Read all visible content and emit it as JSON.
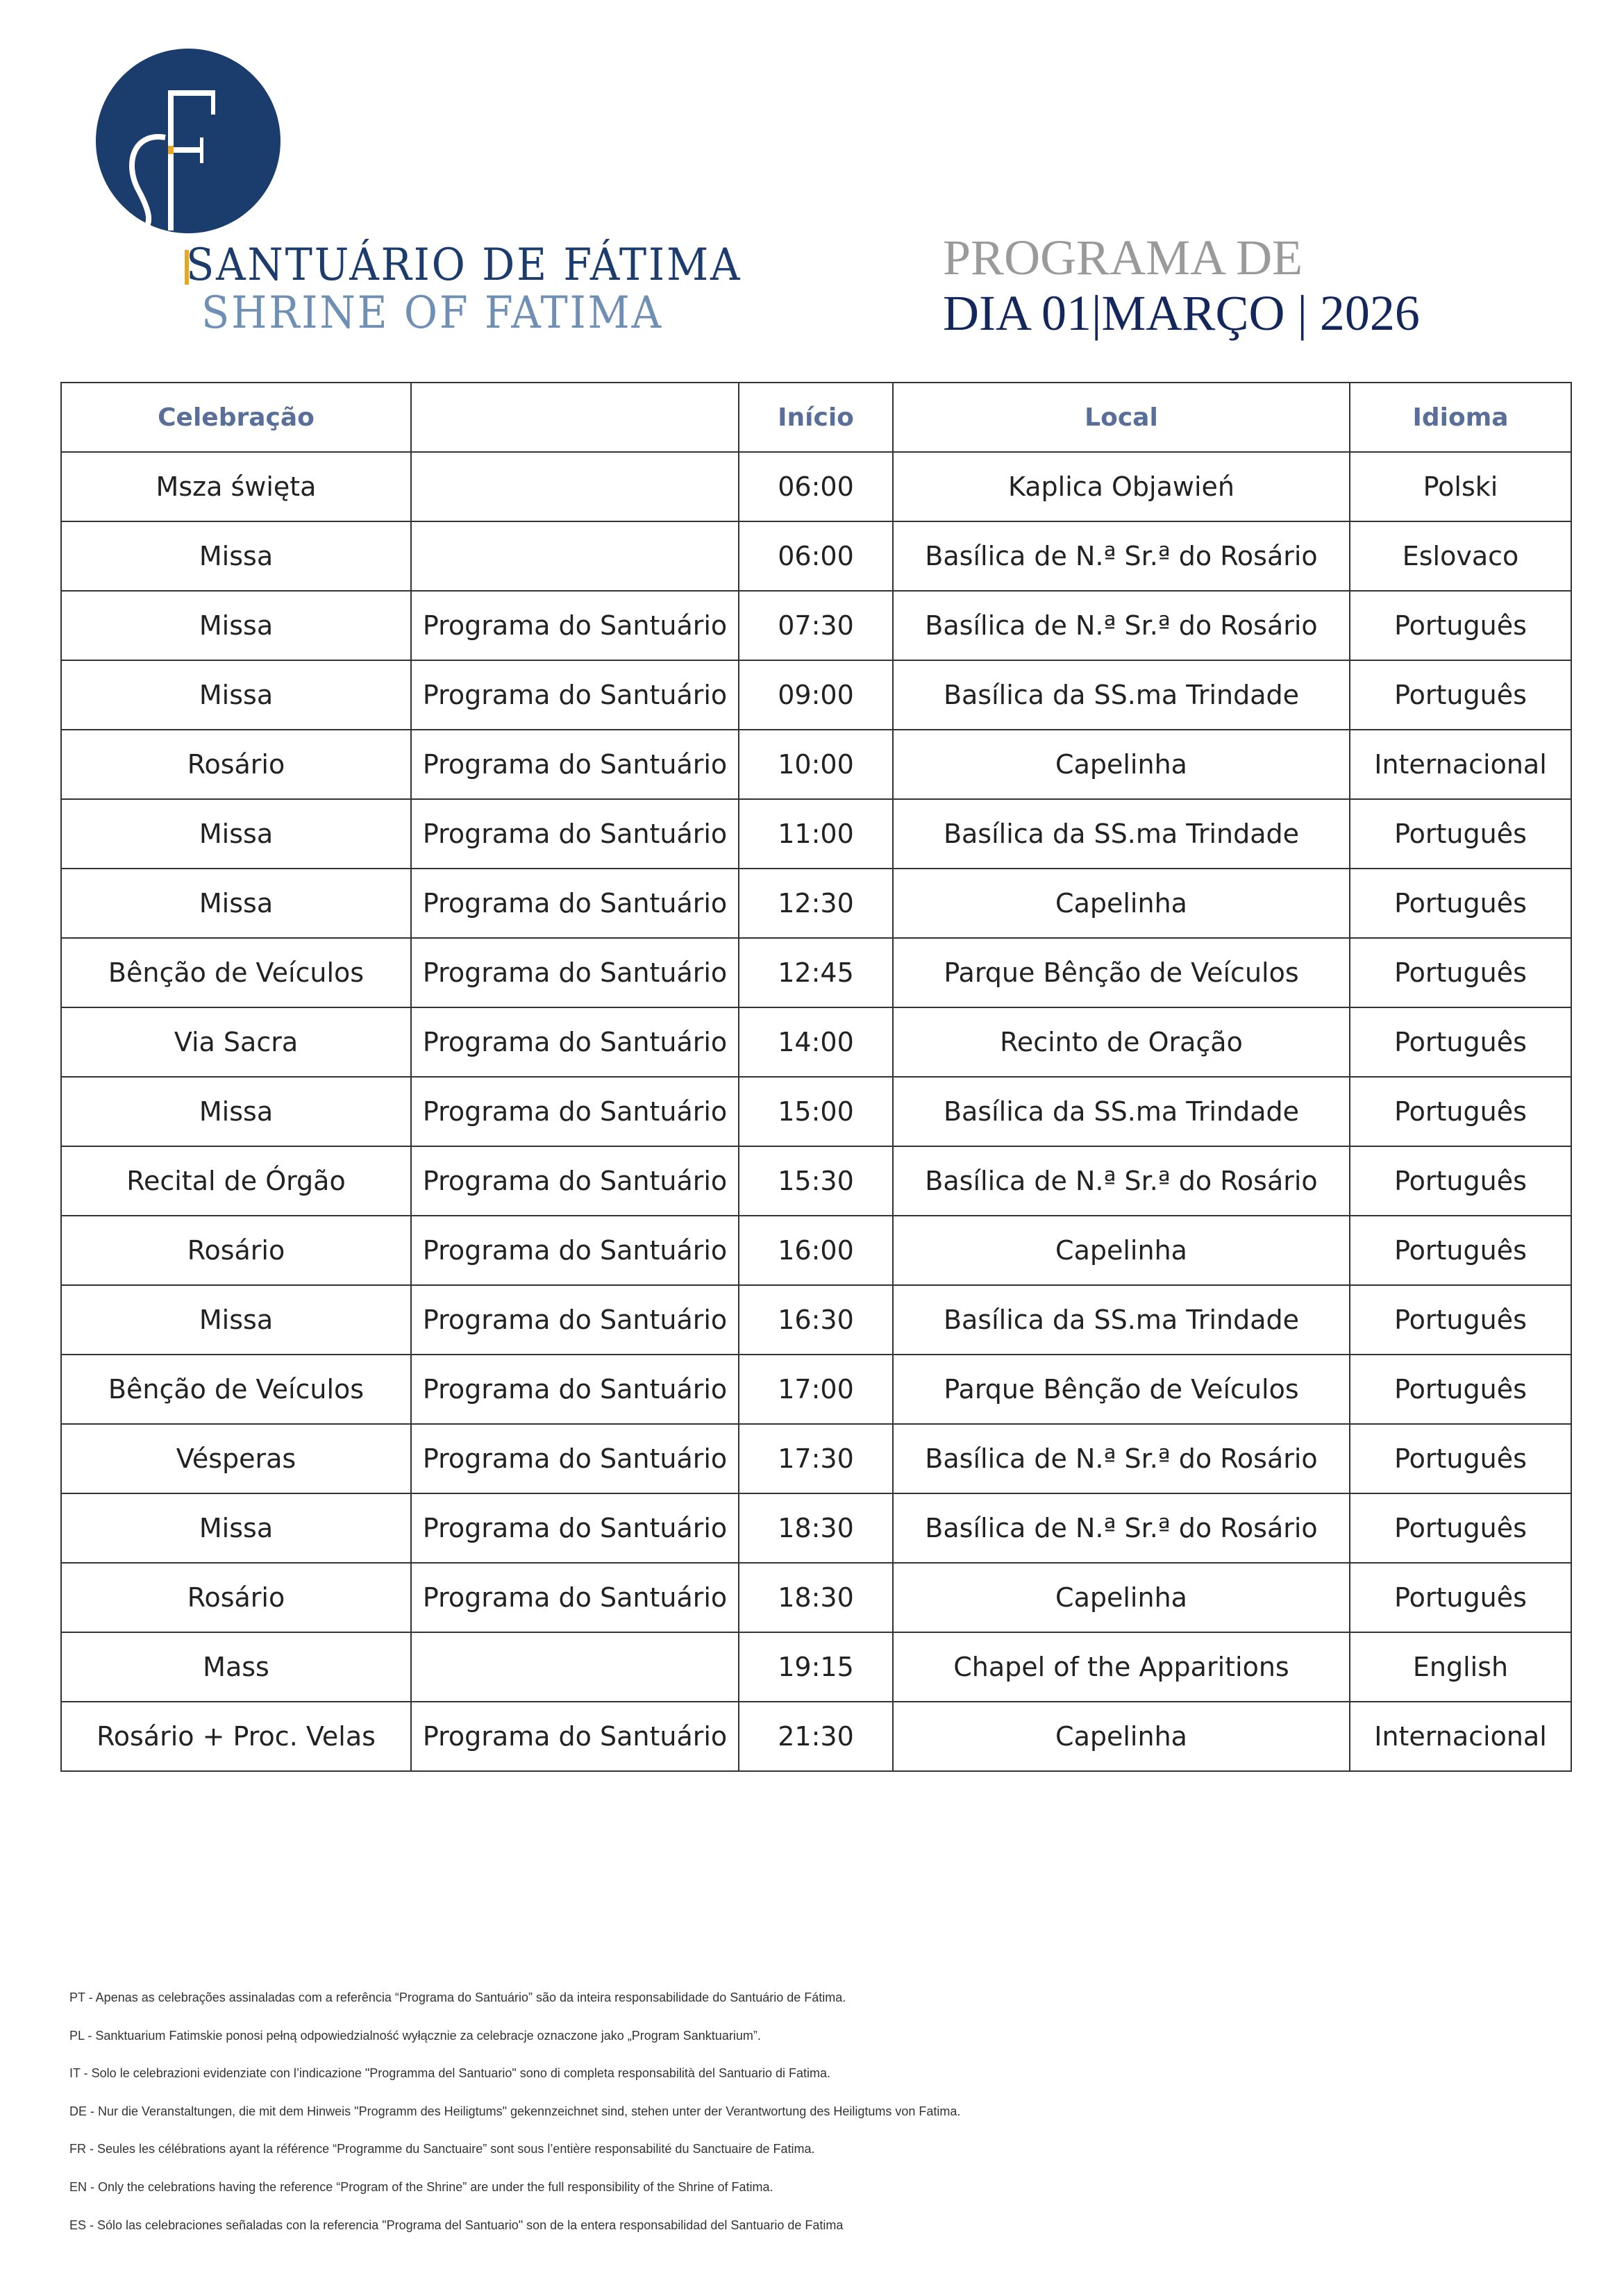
{
  "brand": {
    "logo_letters": "SF",
    "name_pt": "SANTUÁRIO DE FÁTIMA",
    "name_en": "SHRINE OF FATIMA",
    "colors": {
      "navy": "#1d3c6e",
      "light_blue": "#6f8fb5",
      "gold": "#e6a823"
    }
  },
  "header": {
    "title_line1": "PROGRAMA DE",
    "title_line2": "DIA 01|MARÇO | 2026"
  },
  "table": {
    "columns": [
      "Celebração",
      "",
      "Início",
      "Local",
      "Idioma"
    ],
    "rows": [
      [
        "Msza święta",
        "",
        "06:00",
        "Kaplica Objawień",
        "Polski"
      ],
      [
        "Missa",
        "",
        "06:00",
        "Basílica de N.ª Sr.ª do Rosário",
        "Eslovaco"
      ],
      [
        "Missa",
        "Programa do Santuário",
        "07:30",
        "Basílica de N.ª Sr.ª do Rosário",
        "Português"
      ],
      [
        "Missa",
        "Programa do Santuário",
        "09:00",
        "Basílica da SS.ma Trindade",
        "Português"
      ],
      [
        "Rosário",
        "Programa do Santuário",
        "10:00",
        "Capelinha",
        "Internacional"
      ],
      [
        "Missa",
        "Programa do Santuário",
        "11:00",
        "Basílica da SS.ma Trindade",
        "Português"
      ],
      [
        "Missa",
        "Programa do Santuário",
        "12:30",
        "Capelinha",
        "Português"
      ],
      [
        "Bênção de Veículos",
        "Programa do Santuário",
        "12:45",
        "Parque Bênção de Veículos",
        "Português"
      ],
      [
        "Via Sacra",
        "Programa do Santuário",
        "14:00",
        "Recinto de Oração",
        "Português"
      ],
      [
        "Missa",
        "Programa do Santuário",
        "15:00",
        "Basílica da SS.ma Trindade",
        "Português"
      ],
      [
        "Recital de Órgão",
        "Programa do Santuário",
        "15:30",
        "Basílica de N.ª Sr.ª do Rosário",
        "Português"
      ],
      [
        "Rosário",
        "Programa do Santuário",
        "16:00",
        "Capelinha",
        "Português"
      ],
      [
        "Missa",
        "Programa do Santuário",
        "16:30",
        "Basílica da SS.ma Trindade",
        "Português"
      ],
      [
        "Bênção de Veículos",
        "Programa do Santuário",
        "17:00",
        "Parque Bênção de Veículos",
        "Português"
      ],
      [
        "Vésperas",
        "Programa do Santuário",
        "17:30",
        "Basílica de N.ª Sr.ª do Rosário",
        "Português"
      ],
      [
        "Missa",
        "Programa do Santuário",
        "18:30",
        "Basílica de N.ª Sr.ª do Rosário",
        "Português"
      ],
      [
        "Rosário",
        "Programa do Santuário",
        "18:30",
        "Capelinha",
        "Português"
      ],
      [
        "Mass",
        "",
        "19:15",
        "Chapel of the Apparitions",
        "English"
      ],
      [
        "Rosário + Proc. Velas",
        "Programa do Santuário",
        "21:30",
        "Capelinha",
        "Internacional"
      ]
    ]
  },
  "footnotes": [
    "PT - Apenas as celebrações assinaladas com a referência “Programa do Santuário” são da inteira responsabilidade do Santuário de Fátima.",
    "PL - Sanktuarium Fatimskie ponosi pełną odpowiedzialność wyłącznie za celebracje oznaczone jako „Program Sanktuarium”.",
    "IT - Solo le celebrazioni evidenziate con l’indicazione \"Programma del Santuario\" sono di completa responsabilità del Santuario di Fatima.",
    "DE - Nur die Veranstaltungen, die mit dem Hinweis \"Programm des Heiligtums\" gekennzeichnet sind, stehen unter der Verantwortung des Heiligtums von Fatima.",
    "FR - Seules les célébrations ayant la référence “Programme du Sanctuaire” sont sous l’entière responsabilité du Sanctuaire de Fatima.",
    "EN - Only the celebrations having the reference “Program of the Shrine” are under the full responsibility of the Shrine of Fatima.",
    "ES - Sólo las celebraciones señaladas con la referencia \"Programa del Santuario\" son de la entera responsabilidad del Santuario de Fatima"
  ]
}
